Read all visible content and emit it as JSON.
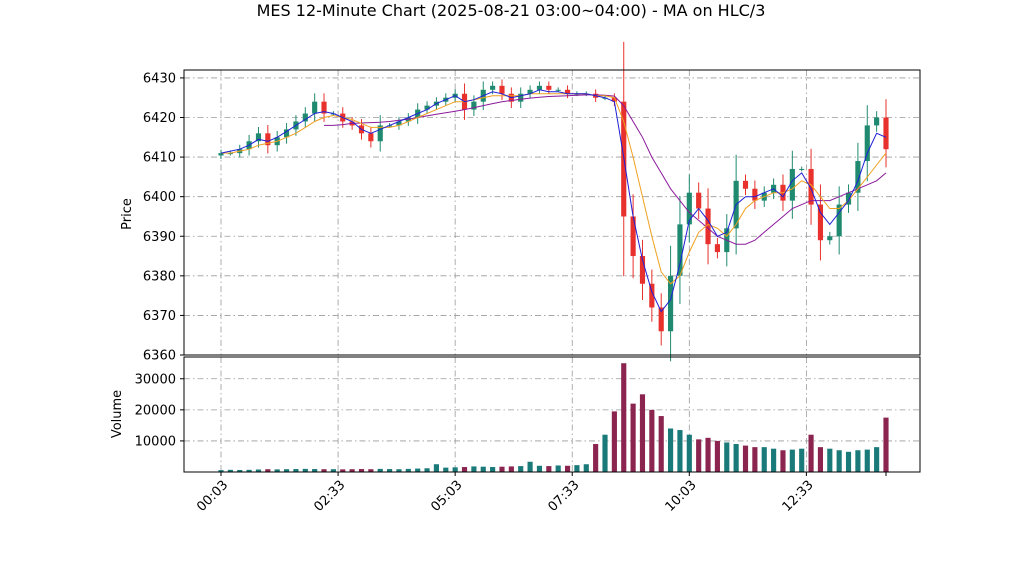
{
  "chart_data": {
    "type": "candlestick",
    "title": "MES 12-Minute Chart (2025-08-21 03:00~04:00) - MA on HLC/3",
    "grid": true,
    "x_tick_labels": [
      "00:03",
      "02:33",
      "05:03",
      "07:33",
      "10:03",
      "12:33"
    ],
    "bar_count": 72,
    "price_panel": {
      "ylabel": "Price",
      "ylim": [
        6360,
        6432
      ],
      "yticks": [
        6360,
        6370,
        6380,
        6390,
        6400,
        6410,
        6420,
        6430
      ],
      "close": [
        6411,
        6411,
        6412,
        6414,
        6416,
        6413,
        6415,
        6417,
        6419,
        6421,
        6424,
        6421,
        6421,
        6419,
        6418,
        6416,
        6414,
        6418,
        6418,
        6419,
        6420,
        6422,
        6423,
        6424,
        6425,
        6426,
        6422,
        6424,
        6427,
        6428,
        6426,
        6424,
        6426,
        6427,
        6428,
        6427,
        6427,
        6426,
        6426,
        6426,
        6425,
        6425,
        6424,
        6395,
        6385,
        6378,
        6372,
        6366,
        6380,
        6393,
        6401,
        6397,
        6388,
        6386,
        6392,
        6404,
        6402,
        6399,
        6401,
        6403,
        6399,
        6407,
        6407,
        6398,
        6389,
        6390,
        6398,
        6401,
        6409,
        6418,
        6420,
        6412
      ],
      "ma_fast_blue": [
        6411,
        6411.5,
        6412,
        6413,
        6414.5,
        6414,
        6415,
        6416.5,
        6418,
        6419.5,
        6421,
        6421.5,
        6421,
        6420,
        6419,
        6417,
        6416,
        6417,
        6418,
        6419,
        6420,
        6421,
        6422,
        6423.5,
        6424.5,
        6425.5,
        6424,
        6424.5,
        6425.5,
        6426.5,
        6426,
        6425,
        6425.5,
        6426,
        6427,
        6426.5,
        6426.5,
        6426,
        6426,
        6426,
        6425.5,
        6425,
        6424,
        6410,
        6395,
        6384,
        6376,
        6371,
        6374,
        6383,
        6394,
        6397,
        6394,
        6390,
        6391,
        6398,
        6400,
        6400,
        6401,
        6402,
        6400,
        6404,
        6406,
        6402,
        6396,
        6393,
        6396,
        6399,
        6404,
        6411,
        6416,
        6415
      ],
      "ma_mid_orange": [
        6411,
        6411,
        6411.5,
        6412,
        6413,
        6413.5,
        6414,
        6415,
        6416,
        6417.5,
        6419,
        6420,
        6420.5,
        6420,
        6419.5,
        6418.5,
        6417.5,
        6417.5,
        6417.5,
        6418,
        6419,
        6420,
        6421,
        6422,
        6423,
        6424,
        6424,
        6424.5,
        6425,
        6425.5,
        6425.5,
        6425.5,
        6425.5,
        6426,
        6426,
        6426,
        6426,
        6426,
        6426,
        6426,
        6425.5,
        6425.5,
        6425,
        6419,
        6410,
        6400,
        6390,
        6381,
        6378,
        6380,
        6386,
        6391,
        6393,
        6392,
        6390,
        6393,
        6397,
        6399,
        6400,
        6401,
        6401,
        6402,
        6404,
        6403,
        6400,
        6397,
        6397,
        6399,
        6402,
        6405,
        6408,
        6411
      ],
      "ma_slow_purple": [
        null,
        null,
        null,
        null,
        null,
        null,
        null,
        null,
        null,
        null,
        null,
        6418,
        6418,
        6418.2,
        6418.5,
        6418.6,
        6418.7,
        6418.8,
        6419,
        6419.3,
        6419.6,
        6420,
        6420.4,
        6420.8,
        6421.2,
        6421.6,
        6422,
        6422.5,
        6423,
        6423.5,
        6424,
        6424.3,
        6424.6,
        6424.9,
        6425.1,
        6425.3,
        6425.4,
        6425.5,
        6425.6,
        6425.7,
        6425.7,
        6425.6,
        6425.4,
        6423,
        6419,
        6415,
        6410,
        6406,
        6402,
        6399,
        6396,
        6394,
        6392,
        6390,
        6389,
        6388,
        6388,
        6389,
        6391,
        6393,
        6395,
        6397,
        6398,
        6399,
        6399,
        6399,
        6400,
        6401,
        6402,
        6403,
        6404,
        6406
      ]
    },
    "volume_panel": {
      "ylabel": "Volume",
      "ylim": [
        0,
        37000
      ],
      "yticks": [
        10000,
        20000,
        30000
      ],
      "ytick_labels": [
        "10000",
        "20000",
        "30000"
      ],
      "values": [
        600,
        700,
        650,
        700,
        800,
        900,
        850,
        900,
        950,
        1000,
        950,
        900,
        900,
        850,
        900,
        950,
        900,
        1000,
        950,
        900,
        1000,
        1100,
        1200,
        2500,
        1400,
        1500,
        1600,
        1800,
        1700,
        1600,
        1700,
        1800,
        1900,
        3300,
        2000,
        1900,
        2100,
        2000,
        2200,
        2500,
        9000,
        12000,
        19500,
        35000,
        22000,
        25000,
        20000,
        18000,
        14000,
        13500,
        12000,
        10500,
        11000,
        10000,
        9500,
        9000,
        8500,
        8000,
        8000,
        7500,
        7000,
        7200,
        7500,
        12000,
        8000,
        7500,
        7000,
        6500,
        7000,
        7200,
        8000,
        17500
      ]
    },
    "colors": {
      "up": "#1f8a70",
      "down": "#e8302c",
      "volume_up": "#1a7a7a",
      "volume_down": "#8b2550",
      "ma_fast": "#1f1fd6",
      "ma_mid": "#f0a020",
      "ma_slow": "#8b1a9b",
      "grid": "#9a9a9a"
    }
  }
}
